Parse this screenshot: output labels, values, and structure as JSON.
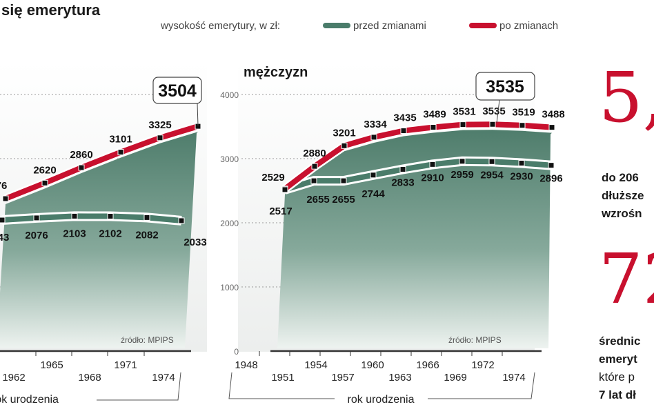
{
  "header": {
    "title": "się emerytura",
    "legend_label": "wysokość emerytury, w zł:",
    "legend_before": "przed zmianami",
    "legend_after": "po zmianach"
  },
  "colors": {
    "before": "#4a7c6a",
    "after": "#c8102e",
    "area": "#4f7d6c"
  },
  "chart_data": [
    {
      "type": "line",
      "title": "",
      "xlabel": "rok urodzenia",
      "ylabel": "wysokość emerytury, w zł",
      "x_tick_labels": [
        "1962",
        "1965",
        "1968",
        "1971",
        "1974"
      ],
      "series": [
        {
          "name": "po zmianach",
          "labels": [
            "76",
            "2620",
            "2860",
            "3101",
            "3325",
            "3504"
          ],
          "values": [
            2376,
            2620,
            2860,
            3101,
            3325,
            3504
          ]
        },
        {
          "name": "przed zmianami",
          "labels": [
            "43",
            "2076",
            "2103",
            "2102",
            "2082",
            "2033"
          ],
          "values": [
            2043,
            2076,
            2103,
            2102,
            2082,
            2033
          ]
        }
      ],
      "highlight": "3504",
      "source": "źródło: MPIPS",
      "ylim": [
        0,
        4000
      ],
      "grid": true
    },
    {
      "type": "line",
      "title": "mężczyzn",
      "xlabel": "rok urodzenia",
      "y_ticks": [
        "4000",
        "3000",
        "2000",
        "1000",
        "0"
      ],
      "x_tick_labels_top": [
        "1948",
        "1954",
        "1960",
        "1966",
        "1972"
      ],
      "x_tick_labels_bottom": [
        "1951",
        "1957",
        "1963",
        "1969",
        "1974"
      ],
      "series": [
        {
          "name": "po zmianach",
          "values": [
            2529,
            2880,
            3201,
            3334,
            3435,
            3489,
            3531,
            3535,
            3519,
            3488
          ]
        },
        {
          "name": "przed zmianami",
          "values": [
            2517,
            2655,
            2655,
            2744,
            2833,
            2910,
            2959,
            2954,
            2930,
            2896
          ]
        }
      ],
      "highlight": "3535",
      "source": "źródło: MPIPS",
      "ylim": [
        0,
        4000
      ],
      "grid": true
    }
  ],
  "side": {
    "big1": "5,",
    "lines1": [
      "do 206",
      "dłuższe",
      "wzrośn"
    ],
    "big2": "72",
    "lines2": [
      "średnic",
      "emeryt",
      "które p",
      "7 lat dł"
    ]
  }
}
